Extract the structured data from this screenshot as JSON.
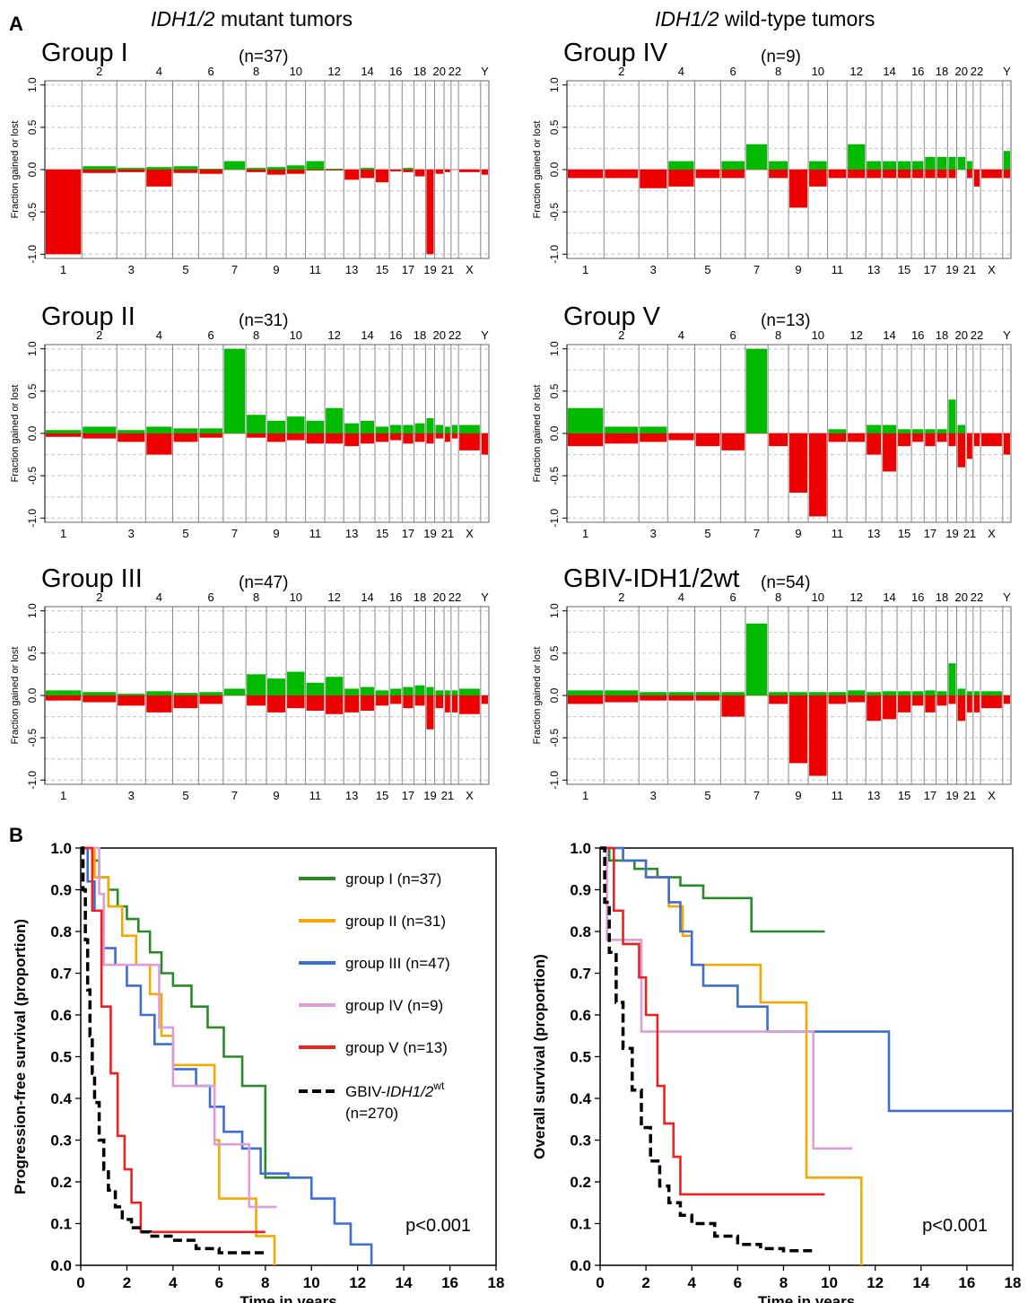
{
  "panels": {
    "a": "A",
    "b": "B"
  },
  "columns": {
    "left": {
      "italic": "IDH1/2",
      "rest": " mutant tumors"
    },
    "right": {
      "italic": "IDH1/2",
      "rest": " wild-type tumors"
    }
  },
  "cnv_common": {
    "ylabel": "Fraction gained or lost",
    "yticks": [
      "1.0",
      "0.5",
      "0.0",
      "-0.5",
      "-1.0"
    ],
    "top_chrom_labels": [
      "2",
      "4",
      "6",
      "8",
      "10",
      "12",
      "14",
      "16",
      "18",
      "20",
      "22",
      "Y"
    ],
    "bottom_chrom_labels": [
      "1",
      "3",
      "5",
      "7",
      "9",
      "11",
      "13",
      "15",
      "17",
      "19",
      "21",
      "X"
    ],
    "chromosomes": [
      "1",
      "2",
      "3",
      "4",
      "5",
      "6",
      "7",
      "8",
      "9",
      "10",
      "11",
      "12",
      "13",
      "14",
      "15",
      "16",
      "17",
      "18",
      "19",
      "20",
      "21",
      "22",
      "X",
      "Y"
    ],
    "colors": {
      "gain": "#00bb00",
      "loss": "#ee0000"
    }
  },
  "cnv_panels": [
    {
      "title": "Group I",
      "n": "(n=37)",
      "gain": [
        0,
        0.04,
        0.02,
        0.03,
        0.04,
        0.01,
        0.1,
        0.02,
        0.03,
        0.05,
        0.1,
        0.01,
        0,
        0.02,
        0,
        0,
        0.02,
        0,
        0,
        0,
        0,
        0,
        0,
        0
      ],
      "loss": [
        -1.0,
        -0.04,
        -0.03,
        -0.2,
        -0.04,
        -0.05,
        0,
        -0.03,
        -0.06,
        -0.05,
        -0.01,
        -0.01,
        -0.12,
        -0.1,
        -0.15,
        -0.02,
        -0.03,
        -0.08,
        -1.0,
        -0.05,
        -0.03,
        0,
        -0.03,
        -0.06
      ]
    },
    {
      "title": "Group II",
      "n": "(n=31)",
      "gain": [
        0.04,
        0.08,
        0.04,
        0.08,
        0.06,
        0.06,
        1.0,
        0.22,
        0.15,
        0.2,
        0.15,
        0.3,
        0.12,
        0.15,
        0.08,
        0.1,
        0.1,
        0.12,
        0.18,
        0.1,
        0.08,
        0.1,
        0.1,
        0
      ],
      "loss": [
        -0.04,
        -0.06,
        -0.1,
        -0.25,
        -0.1,
        -0.05,
        0,
        -0.05,
        -0.1,
        -0.08,
        -0.12,
        -0.12,
        -0.15,
        -0.12,
        -0.1,
        -0.08,
        -0.12,
        -0.1,
        -0.12,
        -0.06,
        -0.1,
        -0.06,
        -0.2,
        -0.25
      ]
    },
    {
      "title": "Group III",
      "n": "(n=47)",
      "gain": [
        0.06,
        0.04,
        0.02,
        0.05,
        0.03,
        0.04,
        0.08,
        0.25,
        0.2,
        0.28,
        0.15,
        0.22,
        0.08,
        0.1,
        0.06,
        0.08,
        0.1,
        0.12,
        0.1,
        0.06,
        0.06,
        0.06,
        0.08,
        0
      ],
      "loss": [
        -0.06,
        -0.08,
        -0.12,
        -0.2,
        -0.15,
        -0.1,
        0,
        -0.12,
        -0.2,
        -0.15,
        -0.18,
        -0.22,
        -0.2,
        -0.18,
        -0.12,
        -0.1,
        -0.15,
        -0.12,
        -0.4,
        -0.15,
        -0.2,
        -0.2,
        -0.22,
        -0.1
      ]
    },
    {
      "title": "Group IV",
      "n": "(n=9)",
      "gain": [
        0,
        0,
        0,
        0.1,
        0,
        0.1,
        0.3,
        0.1,
        0,
        0.1,
        0,
        0.3,
        0.1,
        0.1,
        0.1,
        0.1,
        0.15,
        0.15,
        0.15,
        0.15,
        0.1,
        0,
        0,
        0.22
      ],
      "loss": [
        -0.1,
        -0.1,
        -0.22,
        -0.2,
        -0.1,
        -0.1,
        0,
        -0.1,
        -0.45,
        -0.2,
        -0.1,
        -0.1,
        -0.1,
        -0.1,
        -0.1,
        -0.1,
        -0.1,
        -0.1,
        -0.1,
        0,
        -0.1,
        -0.2,
        -0.1,
        -0.1
      ]
    },
    {
      "title": "Group V",
      "n": "(n=13)",
      "gain": [
        0.3,
        0.08,
        0.08,
        0,
        0,
        0,
        1.0,
        0,
        0,
        0,
        0.05,
        0,
        0.1,
        0.1,
        0.05,
        0.05,
        0.05,
        0.05,
        0.4,
        0.1,
        0,
        0,
        0,
        0
      ],
      "loss": [
        -0.15,
        -0.12,
        -0.1,
        -0.08,
        -0.15,
        -0.2,
        0,
        -0.15,
        -0.7,
        -0.98,
        -0.1,
        -0.1,
        -0.25,
        -0.45,
        -0.15,
        -0.1,
        -0.15,
        -0.1,
        -0.15,
        -0.4,
        -0.3,
        -0.15,
        -0.15,
        -0.25
      ]
    },
    {
      "title": "GBIV-IDH1/2wt",
      "n": "(n=54)",
      "gain": [
        0.06,
        0.06,
        0.04,
        0.04,
        0.04,
        0.04,
        0.85,
        0.04,
        0.04,
        0.04,
        0.04,
        0.06,
        0.04,
        0.05,
        0.05,
        0.05,
        0.06,
        0.05,
        0.38,
        0.08,
        0.05,
        0.05,
        0.05,
        0
      ],
      "loss": [
        -0.1,
        -0.08,
        -0.06,
        -0.06,
        -0.06,
        -0.25,
        0,
        -0.1,
        -0.8,
        -0.95,
        -0.1,
        -0.08,
        -0.3,
        -0.28,
        -0.2,
        -0.12,
        -0.2,
        -0.12,
        -0.1,
        -0.3,
        -0.2,
        -0.2,
        -0.15,
        -0.1
      ]
    }
  ],
  "chart_data": [
    {
      "type": "line",
      "xlabel": "Time in years",
      "ylabel": "Progression-free survival (proportion)",
      "xlim": [
        0,
        18
      ],
      "ylim": [
        0,
        1.0
      ],
      "xticks": [
        0,
        2,
        4,
        6,
        8,
        10,
        12,
        14,
        16,
        18
      ],
      "yticks": [
        0,
        0.1,
        0.2,
        0.3,
        0.4,
        0.5,
        0.6,
        0.7,
        0.8,
        0.9,
        1.0
      ],
      "annotation": "p<0.001",
      "series": [
        {
          "name": "group I (n=37)",
          "color": "#2a8a2a",
          "x": [
            0,
            0.5,
            0.8,
            1.2,
            1.6,
            2.0,
            2.5,
            3.0,
            3.5,
            4.0,
            4.8,
            5.5,
            6.2,
            7.0,
            7.5,
            8.0,
            9.5
          ],
          "y": [
            1.0,
            0.97,
            0.93,
            0.9,
            0.86,
            0.83,
            0.8,
            0.75,
            0.7,
            0.67,
            0.62,
            0.57,
            0.5,
            0.43,
            0.43,
            0.21,
            0.21
          ]
        },
        {
          "name": "group II (n=31)",
          "color": "#f5a800",
          "x": [
            0,
            0.6,
            1.2,
            1.8,
            2.4,
            3.0,
            3.5,
            4.0,
            5.5,
            5.8,
            6.0,
            7.0,
            7.6,
            8.3,
            8.4
          ],
          "y": [
            1.0,
            0.93,
            0.86,
            0.79,
            0.72,
            0.65,
            0.55,
            0.48,
            0.48,
            0.3,
            0.16,
            0.16,
            0.07,
            0.07,
            0
          ]
        },
        {
          "name": "group III (n=47)",
          "color": "#3d6ed4",
          "x": [
            0,
            0.3,
            0.6,
            1.0,
            1.5,
            2.0,
            2.6,
            3.2,
            4.0,
            5.0,
            5.6,
            6.2,
            7.0,
            7.8,
            9.0,
            10.0,
            11.0,
            11.7,
            12.6
          ],
          "y": [
            1.0,
            0.92,
            0.85,
            0.76,
            0.72,
            0.67,
            0.6,
            0.53,
            0.47,
            0.43,
            0.38,
            0.32,
            0.28,
            0.22,
            0.21,
            0.16,
            0.1,
            0.05,
            0
          ]
        },
        {
          "name": "group IV (n=9)",
          "color": "#dc9ed9",
          "x": [
            0,
            0.8,
            1.0,
            3.2,
            3.4,
            4.0,
            5.8,
            7.3,
            8.5
          ],
          "y": [
            1.0,
            0.89,
            0.72,
            0.72,
            0.57,
            0.43,
            0.29,
            0.14,
            0.14
          ]
        },
        {
          "name": "group V (n=13)",
          "color": "#ee2020",
          "x": [
            0,
            0.5,
            0.9,
            1.3,
            1.6,
            1.9,
            2.2,
            2.6,
            8.0
          ],
          "y": [
            1.0,
            0.85,
            0.62,
            0.46,
            0.31,
            0.23,
            0.15,
            0.08,
            0.08
          ]
        },
        {
          "name": "GBIV-IDH1/2wt (n=270)",
          "color": "#000000",
          "dashed": true,
          "x": [
            0,
            0.1,
            0.2,
            0.3,
            0.4,
            0.5,
            0.6,
            0.8,
            1.0,
            1.2,
            1.5,
            1.8,
            2.2,
            2.6,
            3.0,
            4.0,
            5.0,
            6.0,
            8.0
          ],
          "y": [
            1.0,
            0.9,
            0.78,
            0.66,
            0.55,
            0.46,
            0.39,
            0.3,
            0.23,
            0.18,
            0.14,
            0.11,
            0.09,
            0.08,
            0.07,
            0.06,
            0.04,
            0.03,
            0.03
          ]
        }
      ]
    },
    {
      "type": "line",
      "xlabel": "Time in years",
      "ylabel": "Overall survival (proportion)",
      "xlim": [
        0,
        18
      ],
      "ylim": [
        0,
        1.0
      ],
      "xticks": [
        0,
        2,
        4,
        6,
        8,
        10,
        12,
        14,
        16,
        18
      ],
      "yticks": [
        0,
        0.1,
        0.2,
        0.3,
        0.4,
        0.5,
        0.6,
        0.7,
        0.8,
        0.9,
        1.0
      ],
      "annotation": "p<0.001",
      "series": [
        {
          "name": "group I (n=37)",
          "color": "#2a8a2a",
          "x": [
            0,
            0.4,
            1.5,
            2.5,
            3.5,
            4.5,
            6.2,
            6.6,
            9.8
          ],
          "y": [
            1.0,
            0.97,
            0.95,
            0.93,
            0.91,
            0.88,
            0.88,
            0.8,
            0.8
          ]
        },
        {
          "name": "group II (n=31)",
          "color": "#f5a800",
          "x": [
            0,
            1.0,
            2.0,
            3.0,
            3.6,
            4.0,
            6.5,
            7.0,
            8.8,
            9.0,
            10.8,
            11.4
          ],
          "y": [
            1.0,
            0.97,
            0.93,
            0.86,
            0.79,
            0.72,
            0.72,
            0.63,
            0.63,
            0.21,
            0.21,
            0
          ]
        },
        {
          "name": "group III (n=47)",
          "color": "#3d6ed4",
          "x": [
            0,
            1.0,
            2.0,
            3.0,
            3.5,
            4.0,
            4.5,
            6.0,
            7.3,
            12.0,
            12.6,
            18.0
          ],
          "y": [
            1.0,
            0.97,
            0.93,
            0.87,
            0.8,
            0.72,
            0.67,
            0.62,
            0.56,
            0.56,
            0.37,
            0.37
          ]
        },
        {
          "name": "group IV (n=9)",
          "color": "#dc9ed9",
          "x": [
            0,
            0.3,
            1.5,
            1.8,
            9.0,
            9.3,
            11.0
          ],
          "y": [
            1.0,
            0.78,
            0.78,
            0.56,
            0.56,
            0.28,
            0.28
          ]
        },
        {
          "name": "group V (n=13)",
          "color": "#ee2020",
          "x": [
            0,
            0.6,
            1.0,
            1.7,
            2.0,
            2.5,
            2.8,
            3.2,
            3.5,
            9.8
          ],
          "y": [
            1.0,
            0.85,
            0.77,
            0.69,
            0.6,
            0.43,
            0.34,
            0.26,
            0.17,
            0.17
          ]
        },
        {
          "name": "GBIV-IDH1/2wt (n=270)",
          "color": "#000000",
          "dashed": true,
          "x": [
            0,
            0.2,
            0.4,
            0.7,
            1.0,
            1.4,
            1.8,
            2.2,
            2.6,
            3.0,
            3.5,
            4.0,
            5.0,
            6.0,
            7.0,
            8.0,
            9.4
          ],
          "y": [
            1.0,
            0.87,
            0.75,
            0.63,
            0.52,
            0.42,
            0.33,
            0.25,
            0.19,
            0.15,
            0.12,
            0.1,
            0.07,
            0.05,
            0.04,
            0.035,
            0.035
          ]
        }
      ],
      "legend": {
        "entries": [
          {
            "label": "group I (n=37)",
            "color": "#2a8a2a"
          },
          {
            "label": "group II (n=31)",
            "color": "#f5a800"
          },
          {
            "label": "group III (n=47)",
            "color": "#3d6ed4"
          },
          {
            "label": "group IV (n=9)",
            "color": "#dc9ed9"
          },
          {
            "label": "group V (n=13)",
            "color": "#ee2020"
          }
        ],
        "last": {
          "prefix": "GBIV-",
          "italic": "IDH1/2",
          "sup": "wt",
          "second": "(n=270)",
          "color": "#000000"
        }
      }
    }
  ]
}
